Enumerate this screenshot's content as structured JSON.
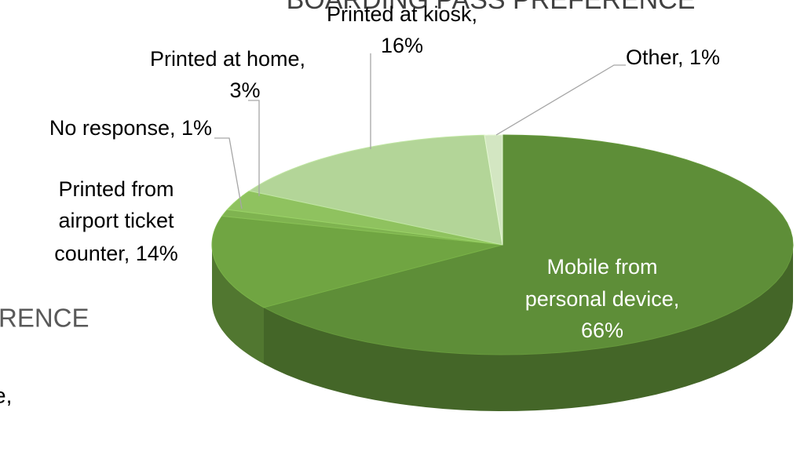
{
  "chart_data": {
    "type": "pie",
    "title": "BOARDING PASS PREFERENCE",
    "background_fragments": [
      "RENCE",
      "e,"
    ],
    "labels": [
      [
        "Mobile from",
        "personal device,",
        "66%"
      ],
      [
        "Printed from",
        "airport ticket",
        "counter, 14%"
      ],
      [
        "No response, 1%"
      ],
      [
        "Printed at home,",
        "3%"
      ],
      [
        "Printed at kiosk,",
        "16%"
      ],
      [
        "Other, 1%"
      ]
    ],
    "values": [
      66,
      14,
      1,
      3,
      16,
      1
    ],
    "colors": [
      "#5e8e38",
      "#70a542",
      "#7fb350",
      "#8fc25f",
      "#b3d598",
      "#d3e6c2"
    ]
  }
}
